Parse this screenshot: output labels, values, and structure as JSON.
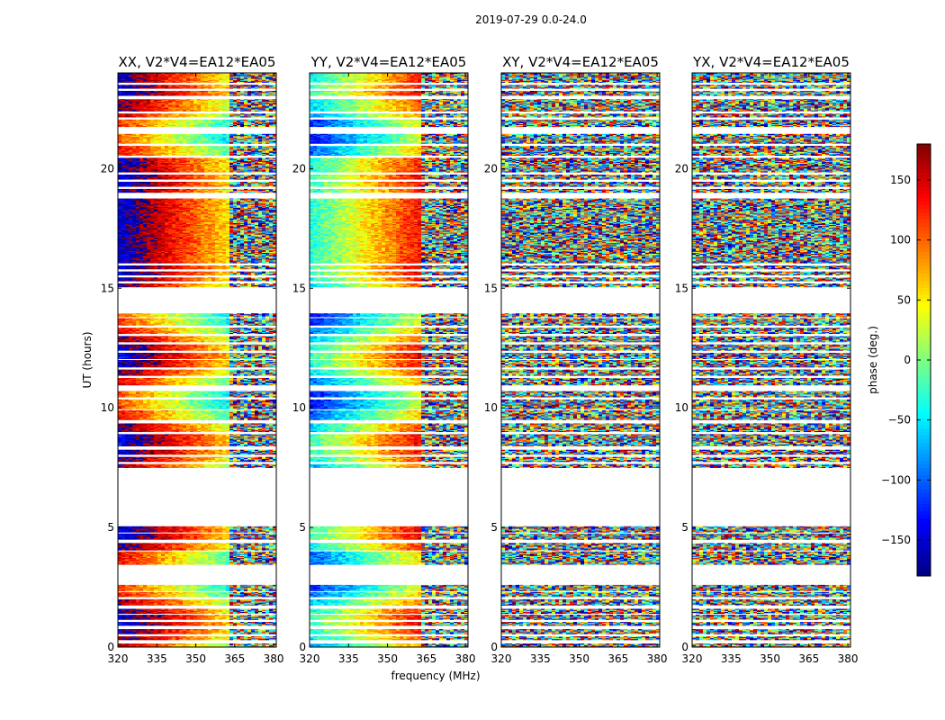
{
  "chart_data": {
    "type": "heatmap",
    "title": "2019-07-29 0.0-24.0",
    "ylabel": "UT (hours)",
    "xlabel": "frequency (MHz)",
    "xlim": [
      320,
      381
    ],
    "ylim": [
      0,
      24
    ],
    "xticks": [
      320,
      335,
      350,
      365,
      380
    ],
    "yticks": [
      0,
      5,
      10,
      15,
      20
    ],
    "x_tick_labels": [
      "320",
      "335",
      "350",
      "365",
      "380"
    ],
    "y_tick_labels": [
      "0",
      "5",
      "10",
      "15",
      "20"
    ],
    "panels": [
      {
        "title": "XX, V2*V4=EA12*EA05",
        "structured": true,
        "phase_start": 160,
        "phase_end": -60
      },
      {
        "title": "YY, V2*V4=EA12*EA05",
        "structured": true,
        "phase_start": -80,
        "phase_end": 150
      },
      {
        "title": "XY, V2*V4=EA12*EA05",
        "structured": false
      },
      {
        "title": "YX, V2*V4=EA12*EA05",
        "structured": false
      }
    ],
    "data_bands_ut": [
      [
        0.0,
        0.15
      ],
      [
        0.3,
        0.45
      ],
      [
        0.55,
        0.75
      ],
      [
        0.9,
        1.05
      ],
      [
        1.15,
        1.35
      ],
      [
        1.4,
        1.6
      ],
      [
        1.75,
        2.0
      ],
      [
        2.1,
        2.3
      ],
      [
        2.35,
        2.6
      ],
      [
        3.45,
        4.0
      ],
      [
        4.05,
        4.35
      ],
      [
        4.5,
        4.75
      ],
      [
        4.8,
        5.05
      ],
      [
        7.5,
        7.65
      ],
      [
        7.75,
        7.95
      ],
      [
        8.05,
        8.25
      ],
      [
        8.4,
        8.9
      ],
      [
        9.0,
        9.35
      ],
      [
        9.5,
        9.9
      ],
      [
        9.95,
        10.35
      ],
      [
        10.45,
        10.7
      ],
      [
        10.95,
        11.25
      ],
      [
        11.35,
        11.6
      ],
      [
        11.7,
        12.0
      ],
      [
        12.05,
        12.3
      ],
      [
        12.4,
        12.65
      ],
      [
        12.75,
        13.0
      ],
      [
        13.1,
        13.35
      ],
      [
        13.45,
        13.75
      ],
      [
        13.8,
        13.95
      ],
      [
        15.05,
        15.2
      ],
      [
        15.3,
        15.45
      ],
      [
        15.55,
        15.7
      ],
      [
        15.8,
        15.95
      ],
      [
        16.05,
        18.75
      ],
      [
        19.0,
        19.15
      ],
      [
        19.25,
        19.45
      ],
      [
        19.55,
        19.75
      ],
      [
        19.85,
        20.45
      ],
      [
        20.55,
        20.95
      ],
      [
        21.05,
        21.45
      ],
      [
        21.75,
        22.05
      ],
      [
        22.15,
        22.3
      ],
      [
        22.4,
        22.9
      ],
      [
        23.05,
        23.25
      ],
      [
        23.35,
        23.5
      ],
      [
        23.6,
        24.0
      ]
    ],
    "colorbar": {
      "label": "phase (deg.)",
      "range": [
        -180,
        180
      ],
      "ticks": [
        150,
        100,
        50,
        0,
        -50,
        -100,
        -150
      ],
      "tick_labels": [
        "150",
        "100",
        "50",
        "0",
        "−50",
        "−100",
        "−150"
      ],
      "colormap": "jet"
    }
  }
}
